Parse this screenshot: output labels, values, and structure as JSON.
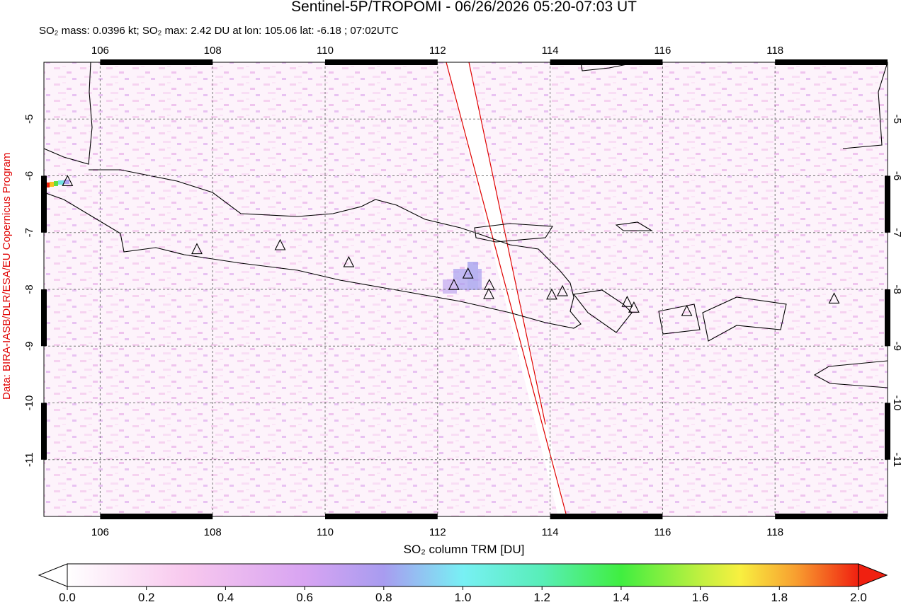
{
  "title": "Sentinel-5P/TROPOMI - 06/26/2026 05:20-07:03 UT",
  "subtitle": "SO₂ mass: 0.0396 kt; SO₂ max: 2.42 DU at lon: 105.06 lat: -6.18 ; 07:02UTC",
  "credit": "Data: BIRA-IASB/DLR/ESA/EU Copernicus Program",
  "map": {
    "xlim": [
      105,
      120
    ],
    "ylim": [
      -12,
      -4
    ],
    "xticks": [
      106,
      108,
      110,
      112,
      114,
      116,
      118
    ],
    "yticks": [
      -5,
      -6,
      -7,
      -8,
      -9,
      -10,
      -11
    ],
    "volcanoes": [
      {
        "lon": 105.42,
        "lat": -6.11
      },
      {
        "lon": 107.72,
        "lat": -7.31
      },
      {
        "lon": 109.2,
        "lat": -7.24
      },
      {
        "lon": 110.42,
        "lat": -7.54
      },
      {
        "lon": 112.29,
        "lat": -7.94
      },
      {
        "lon": 112.54,
        "lat": -7.74
      },
      {
        "lon": 112.92,
        "lat": -7.94
      },
      {
        "lon": 112.91,
        "lat": -8.1
      },
      {
        "lon": 114.03,
        "lat": -8.11
      },
      {
        "lon": 114.22,
        "lat": -8.05
      },
      {
        "lon": 115.37,
        "lat": -8.24
      },
      {
        "lon": 115.49,
        "lat": -8.34
      },
      {
        "lon": 116.43,
        "lat": -8.4
      },
      {
        "lon": 119.05,
        "lat": -8.18
      }
    ]
  },
  "colorbar": {
    "label": "SO₂ column TRM [DU]",
    "lim": [
      0,
      2
    ],
    "ticks": [
      {
        "value": 0,
        "label": "0.0"
      },
      {
        "value": 0.2,
        "label": "0.2"
      },
      {
        "value": 0.4,
        "label": "0.4"
      },
      {
        "value": 0.6,
        "label": "0.6"
      },
      {
        "value": 0.8,
        "label": "0.8"
      },
      {
        "value": 1,
        "label": "1.0"
      },
      {
        "value": 1.2,
        "label": "1.2"
      },
      {
        "value": 1.4,
        "label": "1.4"
      },
      {
        "value": 1.6,
        "label": "1.6"
      },
      {
        "value": 1.8,
        "label": "1.8"
      },
      {
        "value": 2,
        "label": "2.0"
      }
    ]
  }
}
